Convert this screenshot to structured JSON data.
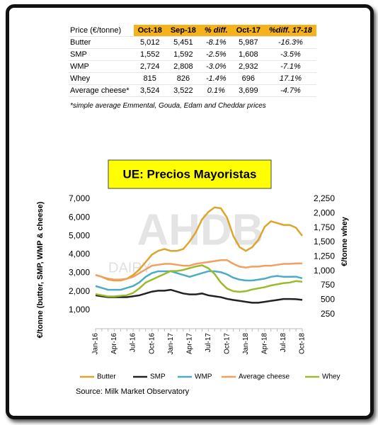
{
  "table": {
    "header": [
      "Price (€/tonne)",
      "Oct-18",
      "Sep-18",
      "% diff.",
      "Oct-17",
      "%diff. 17-18"
    ],
    "rows": [
      [
        "Butter",
        "5,012",
        "5,451",
        "-8.1%",
        "5,987",
        "-16.3%"
      ],
      [
        "SMP",
        "1,552",
        "1,592",
        "-2.5%",
        "1,608",
        "-3.5%"
      ],
      [
        "WMP",
        "2,724",
        "2,808",
        "-3.0%",
        "2,932",
        "-7.1%"
      ],
      [
        "Whey",
        "815",
        "826",
        "-1.4%",
        "696",
        "17.1%"
      ],
      [
        "Average cheese*",
        "3,524",
        "3,522",
        "0.1%",
        "3,699",
        "-4.7%"
      ]
    ],
    "note": "*simple average Emmental, Gouda, Edam and Cheddar prices"
  },
  "chart_data": {
    "type": "line",
    "title": "UE: Precios Mayoristas",
    "watermark": [
      "AHDB",
      "DAIRY"
    ],
    "y_label": "€/tonne (butter, SMP, WMP & cheese)",
    "y2_label": "€/tonne whey",
    "source": "Source: Milk Market Observatory",
    "categories": [
      "Jan-16",
      null,
      null,
      "Apr-16",
      null,
      null,
      "Jul-16",
      null,
      null,
      "Oct-16",
      null,
      null,
      "Jan-17",
      null,
      null,
      "Apr-17",
      null,
      null,
      "Jul-17",
      null,
      null,
      "Oct-17",
      null,
      null,
      "Jan-18",
      null,
      null,
      "Apr-18",
      null,
      null,
      "Jul-18",
      null,
      null,
      "Oct-18"
    ],
    "ylim": [
      0,
      7000
    ],
    "yticks": [
      {
        "value": 1000,
        "label": "1,000"
      },
      {
        "value": 2000,
        "label": "2,000"
      },
      {
        "value": 3000,
        "label": "3,000"
      },
      {
        "value": 4000,
        "label": "4,000"
      },
      {
        "value": 5000,
        "label": "5,000"
      },
      {
        "value": 6000,
        "label": "6,000"
      },
      {
        "value": 7000,
        "label": "7,000"
      }
    ],
    "y2lim": [
      0,
      2250
    ],
    "y2ticks": [
      250,
      500,
      750,
      {
        "value": 1000,
        "label": "1,000"
      },
      {
        "value": 1250,
        "label": "1,250"
      },
      {
        "value": 1500,
        "label": "1,500"
      },
      {
        "value": 1750,
        "label": "1,750"
      },
      {
        "value": 2000,
        "label": "2,000"
      },
      {
        "value": 2250,
        "label": "2,250"
      }
    ],
    "series": [
      {
        "name": "Butter",
        "color": "#dca52c",
        "values": [
          2900,
          2800,
          2650,
          2600,
          2600,
          2700,
          2900,
          3200,
          3600,
          4000,
          4200,
          4300,
          4200,
          4200,
          4300,
          4700,
          5200,
          5900,
          6300,
          6550,
          6500,
          5987,
          5000,
          4400,
          4200,
          4400,
          4800,
          5500,
          5800,
          5700,
          5600,
          5600,
          5451,
          5012
        ]
      },
      {
        "name": "SMP",
        "color": "#222222",
        "values": [
          1800,
          1750,
          1700,
          1700,
          1700,
          1700,
          1750,
          1800,
          1900,
          2000,
          2050,
          2050,
          2100,
          2000,
          1900,
          1850,
          1850,
          1900,
          1800,
          1750,
          1700,
          1608,
          1550,
          1500,
          1450,
          1400,
          1400,
          1450,
          1500,
          1550,
          1600,
          1600,
          1592,
          1552
        ]
      },
      {
        "name": "WMP",
        "color": "#4bacc6",
        "values": [
          2300,
          2200,
          2100,
          2100,
          2100,
          2200,
          2300,
          2500,
          2800,
          3000,
          3100,
          3100,
          3100,
          3000,
          2900,
          2800,
          2900,
          3000,
          3100,
          3100,
          3050,
          2932,
          2750,
          2650,
          2600,
          2600,
          2650,
          2700,
          2800,
          2850,
          2800,
          2800,
          2808,
          2724
        ]
      },
      {
        "name": "Average cheese",
        "color": "#f0a060",
        "values": [
          2900,
          2800,
          2700,
          2650,
          2650,
          2700,
          2800,
          3000,
          3200,
          3400,
          3450,
          3500,
          3500,
          3450,
          3400,
          3400,
          3500,
          3550,
          3600,
          3650,
          3700,
          3699,
          3500,
          3350,
          3300,
          3350,
          3350,
          3400,
          3400,
          3450,
          3500,
          3500,
          3522,
          3524
        ]
      },
      {
        "name": "Whey",
        "color": "#9bbb2a",
        "axis": "y2",
        "values": [
          600,
          580,
          560,
          560,
          570,
          580,
          620,
          700,
          800,
          850,
          900,
          950,
          1000,
          1000,
          1020,
          1050,
          1080,
          1100,
          1050,
          950,
          800,
          696,
          650,
          640,
          650,
          680,
          700,
          720,
          750,
          770,
          790,
          800,
          826,
          815
        ]
      }
    ]
  }
}
